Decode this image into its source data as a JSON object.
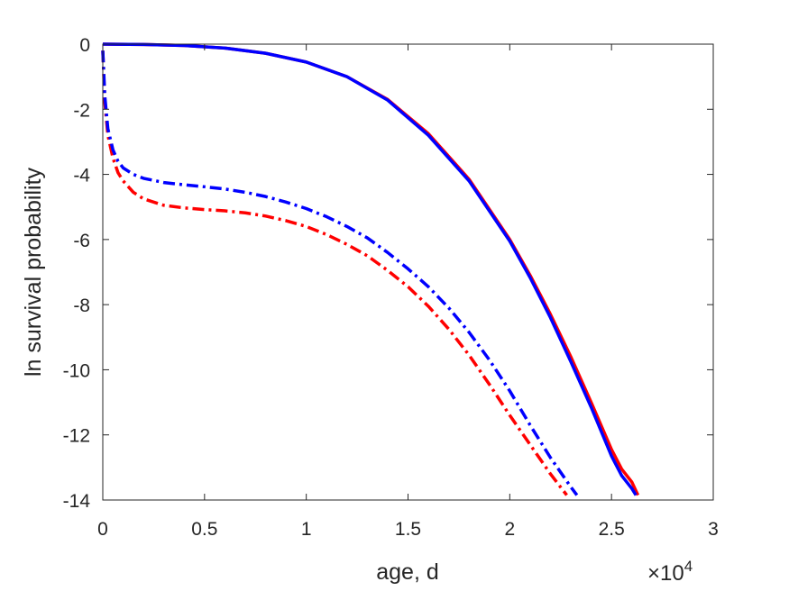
{
  "chart_data": {
    "type": "line",
    "title": "",
    "xlabel": "age, d",
    "ylabel": "ln survival probability",
    "x_exponent_label": "×10",
    "x_exponent_power": "4",
    "xlim": [
      0,
      30000
    ],
    "ylim": [
      -14,
      0
    ],
    "x_ticks": [
      0,
      5000,
      10000,
      15000,
      20000,
      25000,
      30000
    ],
    "x_tick_labels": [
      "0",
      "0.5",
      "1",
      "1.5",
      "2",
      "2.5",
      "3"
    ],
    "y_ticks": [
      0,
      -2,
      -4,
      -6,
      -8,
      -10,
      -12,
      -14
    ],
    "y_tick_labels": [
      "0",
      "-2",
      "-4",
      "-6",
      "-8",
      "-10",
      "-12",
      "-14"
    ],
    "grid": false,
    "legend": "none",
    "series": [
      {
        "color": "#ff0000",
        "style": "solid",
        "x": [
          0,
          2000,
          4000,
          6000,
          8000,
          10000,
          12000,
          14000,
          16000,
          18000,
          20000,
          21000,
          22000,
          23000,
          24000,
          25000,
          25500,
          26000,
          26300
        ],
        "y": [
          0,
          -0.01,
          -0.04,
          -0.12,
          -0.28,
          -0.55,
          -1.0,
          -1.7,
          -2.75,
          -4.15,
          -6.0,
          -7.1,
          -8.3,
          -9.6,
          -11.0,
          -12.45,
          -13.05,
          -13.45,
          -13.85
        ]
      },
      {
        "color": "#0000ff",
        "style": "solid",
        "x": [
          0,
          2000,
          4000,
          6000,
          8000,
          10000,
          12000,
          14000,
          16000,
          18000,
          20000,
          21000,
          22000,
          23000,
          24000,
          25000,
          25500,
          26000,
          26200
        ],
        "y": [
          0,
          -0.01,
          -0.04,
          -0.12,
          -0.28,
          -0.55,
          -1.0,
          -1.72,
          -2.8,
          -4.2,
          -6.05,
          -7.17,
          -8.4,
          -9.75,
          -11.15,
          -12.65,
          -13.25,
          -13.65,
          -13.85
        ]
      },
      {
        "color": "#ff0000",
        "style": "dashdot",
        "x": [
          0,
          100,
          250,
          500,
          750,
          1000,
          1500,
          2000,
          3000,
          4000,
          5000,
          6000,
          7000,
          8000,
          9000,
          10000,
          11000,
          12000,
          13000,
          14000,
          15000,
          16000,
          17000,
          18000,
          19000,
          20000,
          21000,
          22000,
          22800
        ],
        "y": [
          -0.2,
          -1.8,
          -2.8,
          -3.5,
          -3.95,
          -4.2,
          -4.55,
          -4.75,
          -4.95,
          -5.03,
          -5.08,
          -5.12,
          -5.18,
          -5.28,
          -5.42,
          -5.6,
          -5.85,
          -6.15,
          -6.5,
          -6.95,
          -7.45,
          -8.05,
          -8.75,
          -9.55,
          -10.45,
          -11.4,
          -12.3,
          -13.2,
          -13.85
        ]
      },
      {
        "color": "#0000ff",
        "style": "dashdot",
        "x": [
          0,
          100,
          250,
          500,
          750,
          1000,
          1500,
          2000,
          3000,
          4000,
          5000,
          6000,
          7000,
          8000,
          9000,
          10000,
          11000,
          12000,
          13000,
          14000,
          15000,
          16000,
          17000,
          18000,
          19000,
          20000,
          21000,
          22000,
          23000,
          23300
        ],
        "y": [
          -0.2,
          -1.6,
          -2.6,
          -3.25,
          -3.6,
          -3.8,
          -4.0,
          -4.12,
          -4.25,
          -4.32,
          -4.38,
          -4.45,
          -4.55,
          -4.68,
          -4.85,
          -5.05,
          -5.3,
          -5.6,
          -5.95,
          -6.4,
          -6.9,
          -7.45,
          -8.1,
          -8.85,
          -9.7,
          -10.65,
          -11.7,
          -12.7,
          -13.6,
          -13.85
        ]
      }
    ]
  }
}
